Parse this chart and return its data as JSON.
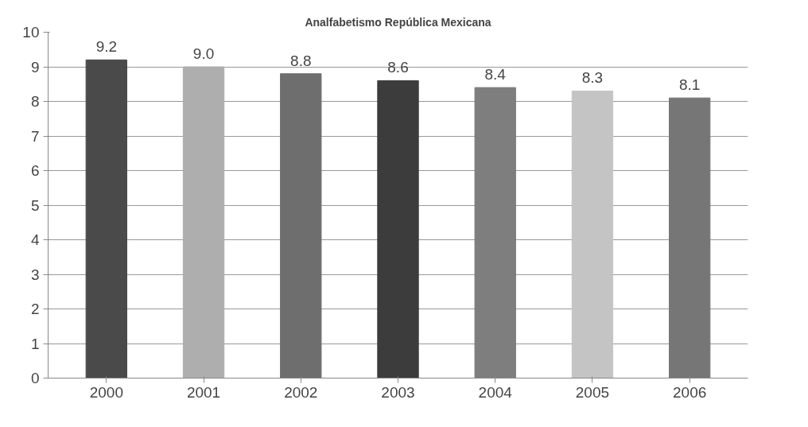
{
  "chart_data": {
    "type": "bar",
    "title": "Analfabetismo República Mexicana",
    "categories": [
      "2000",
      "2001",
      "2002",
      "2003",
      "2004",
      "2005",
      "2006"
    ],
    "values": [
      9.2,
      9.0,
      8.8,
      8.6,
      8.4,
      8.3,
      8.1
    ],
    "value_labels": [
      "9.2",
      "9.0",
      "8.8",
      "8.6",
      "8.4",
      "8.3",
      "8.1"
    ],
    "colors": [
      "#4a4a4a",
      "#aeaeae",
      "#6e6e6e",
      "#3c3c3c",
      "#7e7e7e",
      "#c4c4c4",
      "#767676"
    ],
    "ylim": [
      0,
      10
    ],
    "yticks": [
      0,
      1,
      2,
      3,
      4,
      5,
      6,
      7,
      8,
      9,
      10
    ],
    "grid": "y"
  }
}
